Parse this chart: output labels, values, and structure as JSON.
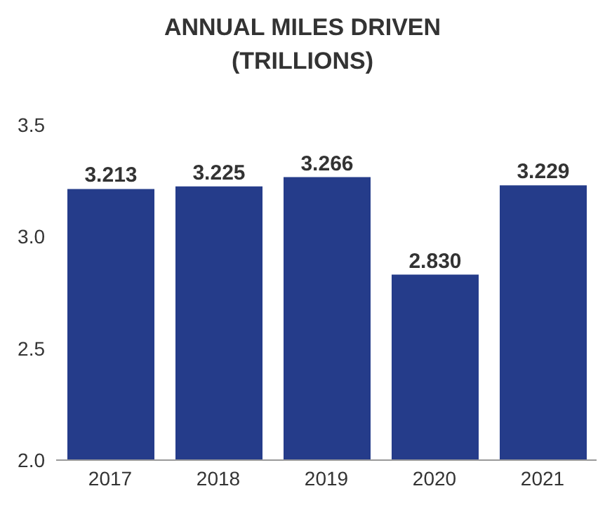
{
  "chart_data": {
    "type": "bar",
    "title": "ANNUAL MILES DRIVEN (TRILLIONS)",
    "categories": [
      "2017",
      "2018",
      "2019",
      "2020",
      "2021"
    ],
    "values": [
      3.213,
      3.225,
      3.266,
      2.83,
      3.229
    ],
    "value_labels": [
      "3.213",
      "3.225",
      "3.266",
      "2.830",
      "3.229"
    ],
    "color": "#253c8a",
    "ylim": [
      2,
      3.5
    ],
    "yticks": [
      {
        "value": 2,
        "label": "2.0"
      },
      {
        "value": 2.5,
        "label": "2.5"
      },
      {
        "value": 3,
        "label": "3.0"
      },
      {
        "value": 3.5,
        "label": "3.5"
      }
    ],
    "grid": false
  }
}
